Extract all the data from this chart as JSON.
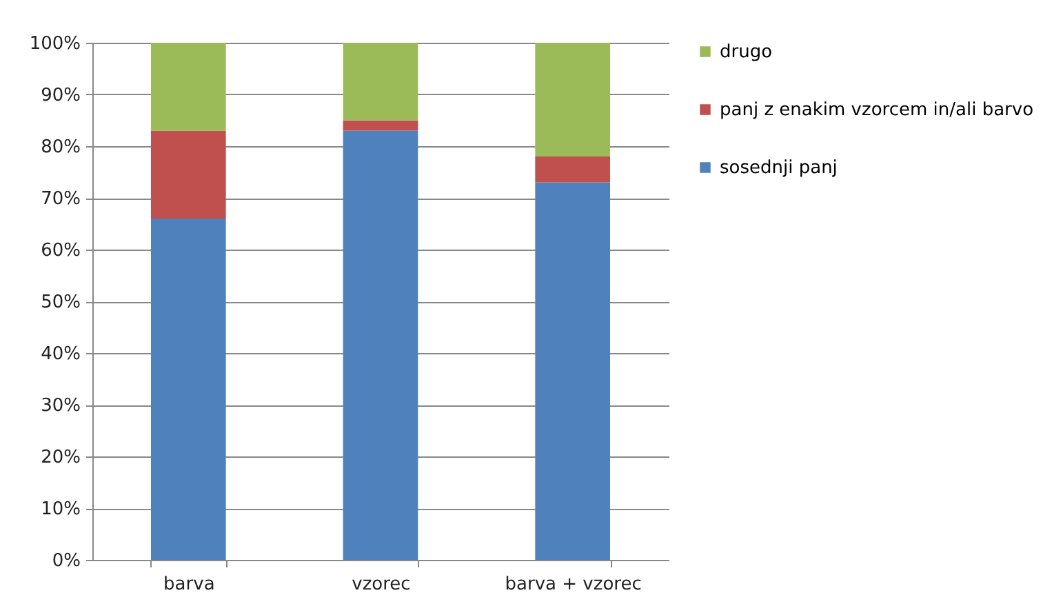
{
  "chart_data": {
    "type": "bar",
    "stacked": true,
    "categories": [
      "barva",
      "vzorec",
      "barva + vzorec"
    ],
    "series": [
      {
        "name": "sosednji panj",
        "color": "#4f81bd",
        "values": [
          66,
          83,
          73
        ]
      },
      {
        "name": "panj z enakim vzorcem in/ali barvo",
        "color": "#c0504d",
        "values": [
          17,
          2,
          5
        ]
      },
      {
        "name": "drugo",
        "color": "#9bbb59",
        "values": [
          17,
          15,
          22
        ]
      }
    ],
    "ylim": [
      0,
      100
    ],
    "yticks": [
      {
        "value": 0,
        "label": "0%"
      },
      {
        "value": 10,
        "label": "10%"
      },
      {
        "value": 20,
        "label": "20%"
      },
      {
        "value": 30,
        "label": "30%"
      },
      {
        "value": 40,
        "label": "40%"
      },
      {
        "value": 50,
        "label": "50%"
      },
      {
        "value": 60,
        "label": "60%"
      },
      {
        "value": 70,
        "label": "70%"
      },
      {
        "value": 80,
        "label": "80%"
      },
      {
        "value": 90,
        "label": "90%"
      },
      {
        "value": 100,
        "label": "100%"
      }
    ],
    "grid": "y",
    "legend": "right"
  }
}
